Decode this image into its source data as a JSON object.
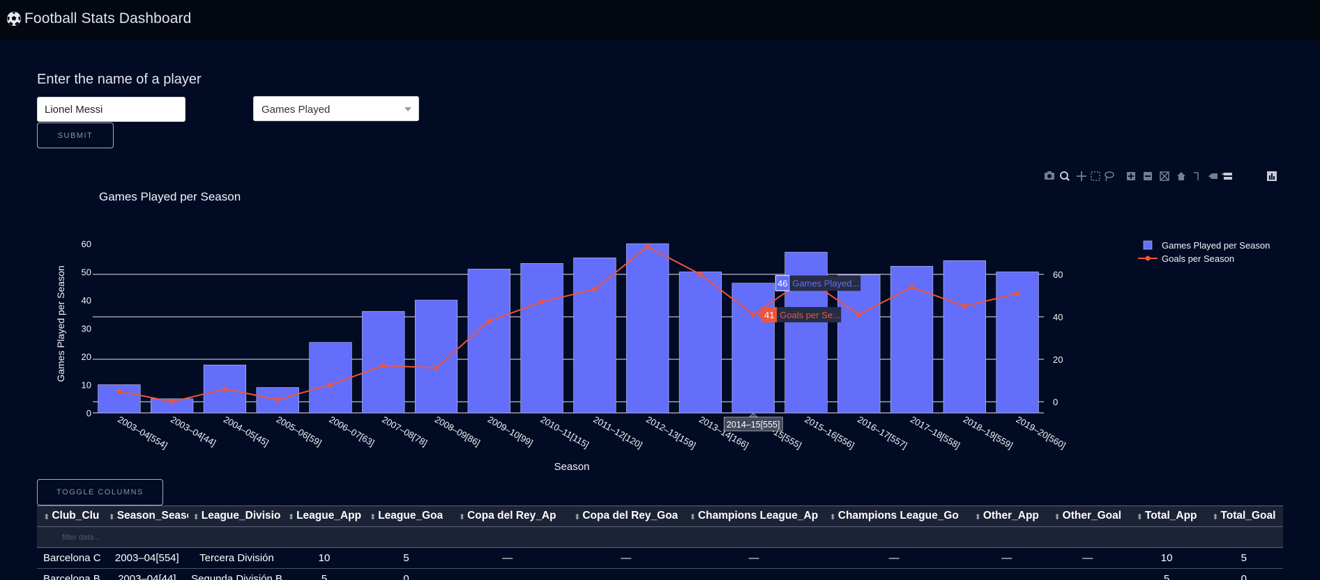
{
  "app": {
    "title": "Football Stats Dashboard",
    "icon": "soccer-ball-icon"
  },
  "form": {
    "prompt": "Enter the name of a player",
    "player_value": "Lionel Messi",
    "stat_selected": "Games Played",
    "submit_label": "SUBMIT"
  },
  "modebar": {
    "icons": [
      "camera-icon",
      "zoom-icon",
      "pan-icon",
      "box-select-icon",
      "lasso-icon",
      "zoom-in-icon",
      "zoom-out-icon",
      "autoscale-icon",
      "reset-axes-icon",
      "spike-lines-icon",
      "hover-closest-icon",
      "hover-compare-icon",
      "plotly-logo-icon"
    ]
  },
  "chart_data": {
    "type": "bar",
    "title": "Games Played per Season",
    "xlabel": "Season",
    "ylabel": "Games Played per Season",
    "categories": [
      "2003–04[554]",
      "2003–04[44]",
      "2004–05[45]",
      "2005–06[59]",
      "2006–07[63]",
      "2007–08[78]",
      "2008–09[86]",
      "2009–10[99]",
      "2010–11[115]",
      "2011–12[120]",
      "2012–13[159]",
      "2013–14[166]",
      "2014–15[555]",
      "2015–16[556]",
      "2016–17[557]",
      "2017–18[558]",
      "2018–19[559]",
      "2019–20[560]"
    ],
    "ylim": [
      0,
      60
    ],
    "y_ticks": [
      0,
      10,
      20,
      30,
      40,
      50,
      60
    ],
    "y2lim": [
      -5,
      76
    ],
    "y2_ticks": [
      0,
      20,
      40,
      60
    ],
    "legend_position": "top-right",
    "series": [
      {
        "name": "Games Played per Season",
        "type": "bar",
        "color": "#636efa",
        "axis": "y",
        "values": [
          10,
          5,
          17,
          9,
          25,
          36,
          40,
          51,
          53,
          55,
          60,
          50,
          46,
          57,
          49,
          52,
          54,
          50
        ]
      },
      {
        "name": "Goals per Season",
        "type": "line",
        "color": "#ef553b",
        "axis": "y2",
        "values": [
          5,
          0,
          6,
          1,
          8,
          17,
          16,
          38,
          47,
          53,
          73,
          60,
          41,
          58,
          41,
          54,
          45,
          51
        ]
      }
    ],
    "hover": {
      "category": "2014–15[555]",
      "bar_value": "46",
      "bar_label": "Games Played...",
      "line_value": "41",
      "line_label": "Goals per Se..."
    }
  },
  "table": {
    "toggle_label": "TOGGLE COLUMNS",
    "filter_placeholder": "filter data...",
    "columns": [
      "Club_Clu",
      "Season_Seaso",
      "League_Divisio",
      "League_App",
      "League_Goa",
      "Copa del Rey_Ap",
      "Copa del Rey_Goa",
      "Champions League_Ap",
      "Champions League_Go",
      "Other_App",
      "Other_Goal",
      "Total_App",
      "Total_Goal"
    ],
    "rows": [
      [
        "Barcelona C",
        "2003–04[554]",
        "Tercera División",
        "10",
        "5",
        "—",
        "—",
        "—",
        "—",
        "—",
        "—",
        "10",
        "5"
      ],
      [
        "Barcelona B",
        "2003–04[44]",
        "Segunda División B",
        "5",
        "0",
        "",
        "",
        "",
        "",
        "",
        "",
        "5",
        "0"
      ]
    ]
  }
}
